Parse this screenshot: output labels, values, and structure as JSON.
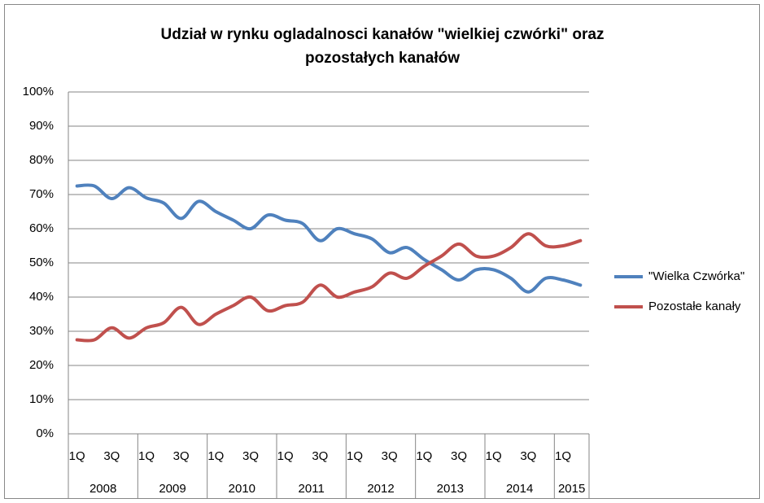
{
  "chart_data": {
    "type": "line",
    "title": "Udział w rynku ogladalnosci kanałów \"wielkiej czwórki\" oraz pozostałych kanałów",
    "categories": [
      "1Q",
      null,
      "3Q",
      null,
      "1Q",
      null,
      "3Q",
      null,
      "1Q",
      null,
      "3Q",
      null,
      "1Q",
      null,
      "3Q",
      null,
      "1Q",
      null,
      "3Q",
      null,
      "1Q",
      null,
      "3Q",
      null,
      "1Q",
      null,
      "3Q",
      null,
      "1Q",
      null
    ],
    "years": [
      "2008",
      "2009",
      "2010",
      "2011",
      "2012",
      "2013",
      "2014",
      "2015"
    ],
    "series": [
      {
        "name": "\"Wielka Czwórka\"",
        "color": "#4f81bd",
        "values": [
          72.5,
          72.5,
          68.8,
          72,
          69,
          67.5,
          63,
          68,
          65,
          62.5,
          60,
          64,
          62.5,
          61.5,
          56.5,
          60,
          58.5,
          57,
          53,
          54.5,
          51,
          48,
          45,
          48,
          48,
          45.5,
          41.5,
          45.5,
          45,
          43.5
        ]
      },
      {
        "name": "Pozostałe kanały",
        "color": "#c0504d",
        "values": [
          27.5,
          27.5,
          31,
          28,
          31,
          32.5,
          37,
          32,
          35,
          37.5,
          40,
          36,
          37.5,
          38.5,
          43.5,
          40,
          41.5,
          43,
          47,
          45.5,
          49,
          52,
          55.5,
          52,
          52,
          54.5,
          58.5,
          55,
          55,
          56.5
        ]
      }
    ],
    "ylim": [
      0,
      100
    ],
    "yticks": [
      {
        "value": 0,
        "label": "0%"
      },
      {
        "value": 10,
        "label": "10%"
      },
      {
        "value": 20,
        "label": "20%"
      },
      {
        "value": 30,
        "label": "30%"
      },
      {
        "value": 40,
        "label": "40%"
      },
      {
        "value": 50,
        "label": "50%"
      },
      {
        "value": 60,
        "label": "60%"
      },
      {
        "value": 70,
        "label": "70%"
      },
      {
        "value": 80,
        "label": "80%"
      },
      {
        "value": 90,
        "label": "90%"
      },
      {
        "value": 100,
        "label": "100%"
      }
    ],
    "grid": true,
    "legend": "right"
  }
}
